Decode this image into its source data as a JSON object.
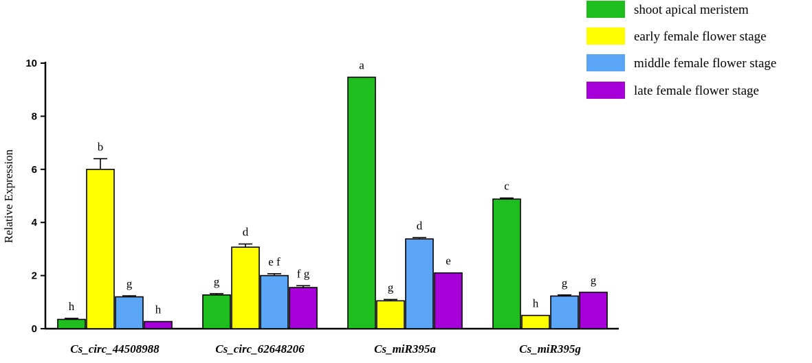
{
  "chart_data": {
    "type": "bar",
    "ylabel": "Relative Expression",
    "xlabel": "",
    "ylim": [
      0,
      10
    ],
    "yticks": [
      0,
      2,
      4,
      6,
      8,
      10
    ],
    "categories": [
      "Cs_circ_44508988",
      "Cs_circ_62648206",
      "Cs_miR395a",
      "Cs_miR395g"
    ],
    "legend_position": "top-right",
    "series": [
      {
        "name": "shoot apical meristem",
        "color": "#1fbe1f",
        "values": [
          0.35,
          1.27,
          9.47,
          4.88
        ],
        "errors": [
          0.04,
          0.05,
          0.0,
          0.04
        ],
        "letters": [
          "h",
          "g",
          "a",
          "c"
        ]
      },
      {
        "name": "early female flower stage",
        "color": "#ffff00",
        "values": [
          6.0,
          3.07,
          1.05,
          0.5
        ],
        "errors": [
          0.4,
          0.12,
          0.05,
          0.0
        ],
        "letters": [
          "b",
          "d",
          "g",
          "h"
        ]
      },
      {
        "name": "middle female flower stage",
        "color": "#5aa5f6",
        "values": [
          1.2,
          2.0,
          3.38,
          1.23
        ],
        "errors": [
          0.04,
          0.07,
          0.05,
          0.04
        ],
        "letters": [
          "g",
          "e f",
          "d",
          "g"
        ]
      },
      {
        "name": "late female flower stage",
        "color": "#a500d8",
        "values": [
          0.27,
          1.55,
          2.1,
          1.37
        ],
        "errors": [
          0.0,
          0.07,
          0.0,
          0.0
        ],
        "letters": [
          "h",
          "f g",
          "e",
          "g"
        ]
      }
    ]
  }
}
